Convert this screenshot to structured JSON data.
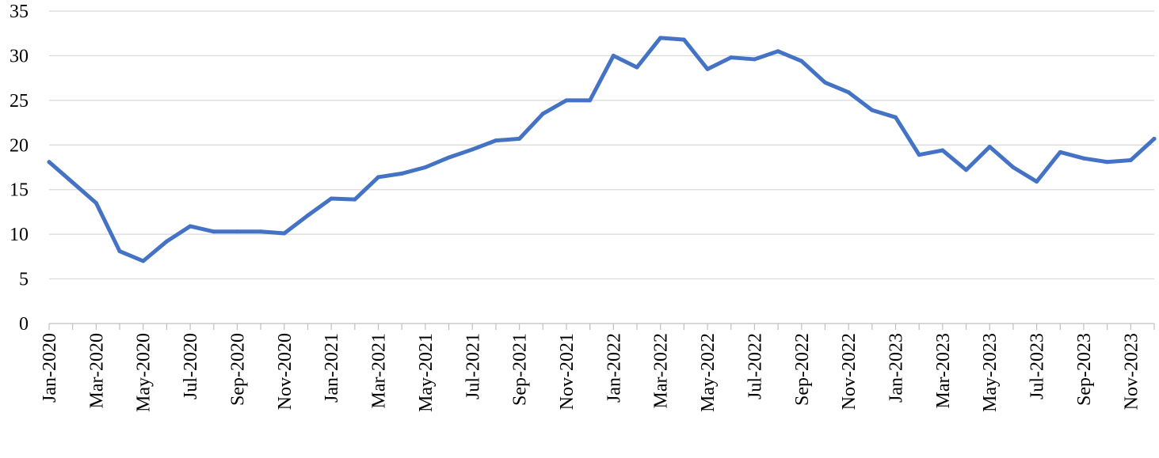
{
  "chart_data": {
    "type": "line",
    "title": "",
    "xlabel": "",
    "ylabel": "",
    "ylim": [
      0,
      35
    ],
    "y_ticks": [
      0,
      5,
      10,
      15,
      20,
      25,
      30,
      35
    ],
    "grid": true,
    "legend": "none",
    "color": "#4472c4",
    "x": [
      "Jan-2020",
      "Feb-2020",
      "Mar-2020",
      "Apr-2020",
      "May-2020",
      "Jun-2020",
      "Jul-2020",
      "Aug-2020",
      "Sep-2020",
      "Oct-2020",
      "Nov-2020",
      "Dec-2020",
      "Jan-2021",
      "Feb-2021",
      "Mar-2021",
      "Apr-2021",
      "May-2021",
      "Jun-2021",
      "Jul-2021",
      "Aug-2021",
      "Sep-2021",
      "Oct-2021",
      "Nov-2021",
      "Dec-2021",
      "Jan-2022",
      "Feb-2022",
      "Mar-2022",
      "Apr-2022",
      "May-2022",
      "Jun-2022",
      "Jul-2022",
      "Aug-2022",
      "Sep-2022",
      "Oct-2022",
      "Nov-2022",
      "Dec-2022",
      "Jan-2023",
      "Feb-2023",
      "Mar-2023",
      "Apr-2023",
      "May-2023",
      "Jun-2023",
      "Jul-2023",
      "Aug-2023",
      "Sep-2023",
      "Oct-2023",
      "Nov-2023",
      "Dec-2023"
    ],
    "x_tick_labels": [
      "Jan-2020",
      "Mar-2020",
      "May-2020",
      "Jul-2020",
      "Sep-2020",
      "Nov-2020",
      "Jan-2021",
      "Mar-2021",
      "May-2021",
      "Jul-2021",
      "Sep-2021",
      "Nov-2021",
      "Jan-2022",
      "Mar-2022",
      "May-2022",
      "Jul-2022",
      "Sep-2022",
      "Nov-2022",
      "Jan-2023",
      "Mar-2023",
      "May-2023",
      "Jul-2023",
      "Sep-2023",
      "Nov-2023"
    ],
    "series": [
      {
        "values": [
          18.1,
          15.8,
          13.5,
          8.1,
          7.0,
          9.2,
          10.9,
          10.3,
          10.3,
          10.3,
          10.1,
          12.1,
          14.0,
          13.9,
          16.4,
          16.8,
          17.5,
          18.6,
          19.5,
          20.5,
          20.7,
          23.5,
          25.0,
          25.0,
          30.0,
          28.7,
          32.0,
          31.8,
          28.5,
          29.8,
          29.6,
          30.5,
          29.4,
          27.0,
          25.9,
          23.9,
          23.1,
          18.9,
          19.4,
          17.2,
          19.8,
          17.5,
          15.9,
          19.2,
          18.5,
          18.1,
          18.3,
          20.7
        ]
      }
    ]
  }
}
